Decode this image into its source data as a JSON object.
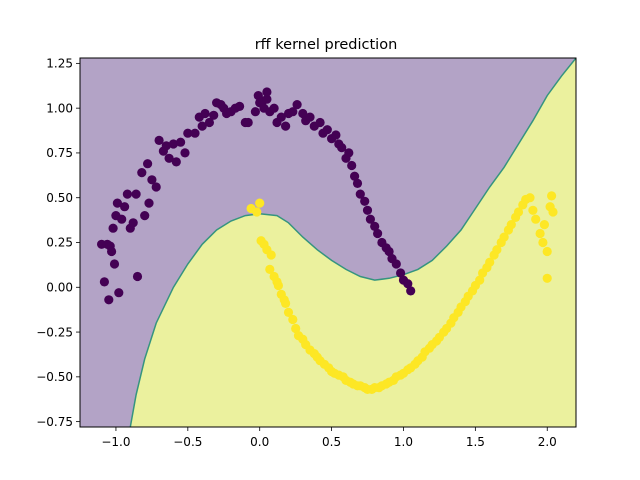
{
  "chart_data": {
    "type": "scatter",
    "title": "rff kernel prediction",
    "xlabel": "",
    "ylabel": "",
    "xlim": [
      -1.25,
      2.2
    ],
    "ylim": [
      -0.78,
      1.28
    ],
    "grid": false,
    "legend": "none",
    "x_ticks": [
      -1.0,
      -0.5,
      0.0,
      0.5,
      1.0,
      1.5,
      2.0
    ],
    "x_tick_labels": [
      "−1.0",
      "−0.5",
      "0.0",
      "0.5",
      "1.0",
      "1.5",
      "2.0"
    ],
    "y_ticks": [
      -0.75,
      -0.5,
      -0.25,
      0.0,
      0.25,
      0.5,
      0.75,
      1.0,
      1.25
    ],
    "y_tick_labels": [
      "−0.75",
      "−0.50",
      "−0.25",
      "0.00",
      "0.25",
      "0.50",
      "0.75",
      "1.00",
      "1.25"
    ],
    "colors": {
      "class0_region": "#b3a3c6",
      "class1_region": "#ebf19e",
      "boundary": "#35947f",
      "class0_points": "#440154",
      "class1_points": "#fde725"
    },
    "decision_boundary": [
      [
        -0.9,
        -0.78
      ],
      [
        -0.86,
        -0.6
      ],
      [
        -0.8,
        -0.4
      ],
      [
        -0.72,
        -0.2
      ],
      [
        -0.6,
        0.0
      ],
      [
        -0.5,
        0.13
      ],
      [
        -0.4,
        0.24
      ],
      [
        -0.3,
        0.32
      ],
      [
        -0.2,
        0.37
      ],
      [
        -0.1,
        0.4
      ],
      [
        0.0,
        0.41
      ],
      [
        0.12,
        0.4
      ],
      [
        0.2,
        0.36
      ],
      [
        0.3,
        0.28
      ],
      [
        0.4,
        0.21
      ],
      [
        0.5,
        0.15
      ],
      [
        0.6,
        0.1
      ],
      [
        0.7,
        0.06
      ],
      [
        0.8,
        0.04
      ],
      [
        0.9,
        0.05
      ],
      [
        1.0,
        0.07
      ],
      [
        1.1,
        0.1
      ],
      [
        1.2,
        0.15
      ],
      [
        1.3,
        0.23
      ],
      [
        1.4,
        0.32
      ],
      [
        1.5,
        0.44
      ],
      [
        1.6,
        0.56
      ],
      [
        1.7,
        0.67
      ],
      [
        1.8,
        0.8
      ],
      [
        1.9,
        0.93
      ],
      [
        2.0,
        1.07
      ],
      [
        2.1,
        1.18
      ],
      [
        2.2,
        1.28
      ]
    ],
    "series": [
      {
        "values": [
          [
            -1.1,
            0.24
          ],
          [
            -1.08,
            0.03
          ],
          [
            -1.06,
            0.24
          ],
          [
            -1.05,
            -0.07
          ],
          [
            -1.04,
            0.23
          ],
          [
            -1.03,
            0.2
          ],
          [
            -1.02,
            0.33
          ],
          [
            -1.01,
            0.13
          ],
          [
            -1.0,
            0.4
          ],
          [
            -0.99,
            0.47
          ],
          [
            -0.98,
            -0.03
          ],
          [
            -0.96,
            0.38
          ],
          [
            -0.94,
            0.45
          ],
          [
            -0.92,
            0.52
          ],
          [
            -0.9,
            0.33
          ],
          [
            -0.88,
            0.36
          ],
          [
            -0.86,
            0.52
          ],
          [
            -0.85,
            0.06
          ],
          [
            -0.82,
            0.64
          ],
          [
            -0.8,
            0.4
          ],
          [
            -0.78,
            0.69
          ],
          [
            -0.77,
            0.47
          ],
          [
            -0.75,
            0.6
          ],
          [
            -0.72,
            0.56
          ],
          [
            -0.7,
            0.82
          ],
          [
            -0.67,
            0.76
          ],
          [
            -0.65,
            0.79
          ],
          [
            -0.63,
            0.72
          ],
          [
            -0.6,
            0.8
          ],
          [
            -0.58,
            0.7
          ],
          [
            -0.55,
            0.81
          ],
          [
            -0.52,
            0.75
          ],
          [
            -0.5,
            0.86
          ],
          [
            -0.45,
            0.86
          ],
          [
            -0.42,
            0.95
          ],
          [
            -0.4,
            0.9
          ],
          [
            -0.38,
            0.97
          ],
          [
            -0.35,
            0.92
          ],
          [
            -0.32,
            0.96
          ],
          [
            -0.3,
            1.03
          ],
          [
            -0.27,
            1.02
          ],
          [
            -0.25,
            1.0
          ],
          [
            -0.23,
            0.97
          ],
          [
            -0.2,
            0.98
          ],
          [
            -0.17,
            1.0
          ],
          [
            -0.14,
            1.01
          ],
          [
            -0.1,
            0.92
          ],
          [
            -0.08,
            0.92
          ],
          [
            -0.03,
            0.98
          ],
          [
            -0.01,
            1.07
          ],
          [
            0.0,
            1.03
          ],
          [
            0.02,
            1.04
          ],
          [
            0.03,
            1.0
          ],
          [
            0.05,
            1.05
          ],
          [
            0.05,
            1.09
          ],
          [
            0.07,
            0.98
          ],
          [
            0.1,
            1.0
          ],
          [
            0.12,
            0.92
          ],
          [
            0.15,
            0.95
          ],
          [
            0.18,
            0.9
          ],
          [
            0.2,
            0.97
          ],
          [
            0.23,
            0.98
          ],
          [
            0.26,
            1.02
          ],
          [
            0.3,
            0.97
          ],
          [
            0.32,
            0.93
          ],
          [
            0.35,
            0.95
          ],
          [
            0.38,
            0.9
          ],
          [
            0.42,
            0.92
          ],
          [
            0.44,
            0.86
          ],
          [
            0.47,
            0.88
          ],
          [
            0.5,
            0.83
          ],
          [
            0.53,
            0.85
          ],
          [
            0.55,
            0.8
          ],
          [
            0.57,
            0.78
          ],
          [
            0.6,
            0.72
          ],
          [
            0.62,
            0.75
          ],
          [
            0.64,
            0.68
          ],
          [
            0.66,
            0.62
          ],
          [
            0.68,
            0.58
          ],
          [
            0.7,
            0.52
          ],
          [
            0.73,
            0.48
          ],
          [
            0.75,
            0.43
          ],
          [
            0.77,
            0.38
          ],
          [
            0.8,
            0.34
          ],
          [
            0.82,
            0.3
          ],
          [
            0.85,
            0.25
          ],
          [
            0.88,
            0.22
          ],
          [
            0.9,
            0.2
          ],
          [
            0.92,
            0.16
          ],
          [
            0.95,
            0.13
          ],
          [
            0.98,
            0.08
          ],
          [
            1.0,
            0.04
          ],
          [
            1.03,
            0.02
          ],
          [
            1.05,
            -0.02
          ]
        ]
      },
      {
        "values": [
          [
            -0.06,
            0.44
          ],
          [
            -0.02,
            0.42
          ],
          [
            0.0,
            0.47
          ],
          [
            0.01,
            0.26
          ],
          [
            0.03,
            0.24
          ],
          [
            0.05,
            0.21
          ],
          [
            0.07,
            0.1
          ],
          [
            0.08,
            0.18
          ],
          [
            0.1,
            0.06
          ],
          [
            0.12,
            0.03
          ],
          [
            0.13,
            0.01
          ],
          [
            0.15,
            -0.04
          ],
          [
            0.17,
            -0.07
          ],
          [
            0.18,
            -0.09
          ],
          [
            0.2,
            -0.14
          ],
          [
            0.23,
            -0.18
          ],
          [
            0.25,
            -0.23
          ],
          [
            0.27,
            -0.27
          ],
          [
            0.3,
            -0.29
          ],
          [
            0.32,
            -0.32
          ],
          [
            0.35,
            -0.35
          ],
          [
            0.38,
            -0.37
          ],
          [
            0.4,
            -0.39
          ],
          [
            0.42,
            -0.41
          ],
          [
            0.45,
            -0.43
          ],
          [
            0.48,
            -0.45
          ],
          [
            0.5,
            -0.47
          ],
          [
            0.52,
            -0.48
          ],
          [
            0.55,
            -0.49
          ],
          [
            0.58,
            -0.5
          ],
          [
            0.6,
            -0.52
          ],
          [
            0.63,
            -0.53
          ],
          [
            0.65,
            -0.54
          ],
          [
            0.68,
            -0.55
          ],
          [
            0.7,
            -0.55
          ],
          [
            0.73,
            -0.56
          ],
          [
            0.75,
            -0.57
          ],
          [
            0.78,
            -0.57
          ],
          [
            0.8,
            -0.56
          ],
          [
            0.83,
            -0.56
          ],
          [
            0.85,
            -0.55
          ],
          [
            0.88,
            -0.54
          ],
          [
            0.9,
            -0.53
          ],
          [
            0.93,
            -0.52
          ],
          [
            0.95,
            -0.5
          ],
          [
            0.98,
            -0.49
          ],
          [
            1.0,
            -0.48
          ],
          [
            1.03,
            -0.46
          ],
          [
            1.05,
            -0.45
          ],
          [
            1.08,
            -0.43
          ],
          [
            1.1,
            -0.41
          ],
          [
            1.13,
            -0.39
          ],
          [
            1.15,
            -0.36
          ],
          [
            1.18,
            -0.34
          ],
          [
            1.2,
            -0.32
          ],
          [
            1.23,
            -0.3
          ],
          [
            1.25,
            -0.28
          ],
          [
            1.28,
            -0.25
          ],
          [
            1.3,
            -0.23
          ],
          [
            1.33,
            -0.2
          ],
          [
            1.35,
            -0.17
          ],
          [
            1.38,
            -0.14
          ],
          [
            1.4,
            -0.11
          ],
          [
            1.43,
            -0.08
          ],
          [
            1.45,
            -0.05
          ],
          [
            1.48,
            -0.02
          ],
          [
            1.5,
            0.01
          ],
          [
            1.53,
            0.04
          ],
          [
            1.55,
            0.08
          ],
          [
            1.58,
            0.11
          ],
          [
            1.6,
            0.14
          ],
          [
            1.63,
            0.18
          ],
          [
            1.65,
            0.21
          ],
          [
            1.68,
            0.25
          ],
          [
            1.7,
            0.28
          ],
          [
            1.73,
            0.32
          ],
          [
            1.75,
            0.35
          ],
          [
            1.78,
            0.39
          ],
          [
            1.8,
            0.42
          ],
          [
            1.83,
            0.46
          ],
          [
            1.85,
            0.49
          ],
          [
            1.88,
            0.5
          ],
          [
            1.9,
            0.43
          ],
          [
            1.92,
            0.38
          ],
          [
            1.95,
            0.3
          ],
          [
            1.97,
            0.25
          ],
          [
            1.98,
            0.35
          ],
          [
            2.0,
            0.05
          ],
          [
            2.0,
            0.2
          ],
          [
            2.02,
            0.45
          ],
          [
            2.03,
            0.51
          ],
          [
            2.04,
            0.42
          ]
        ]
      }
    ]
  }
}
